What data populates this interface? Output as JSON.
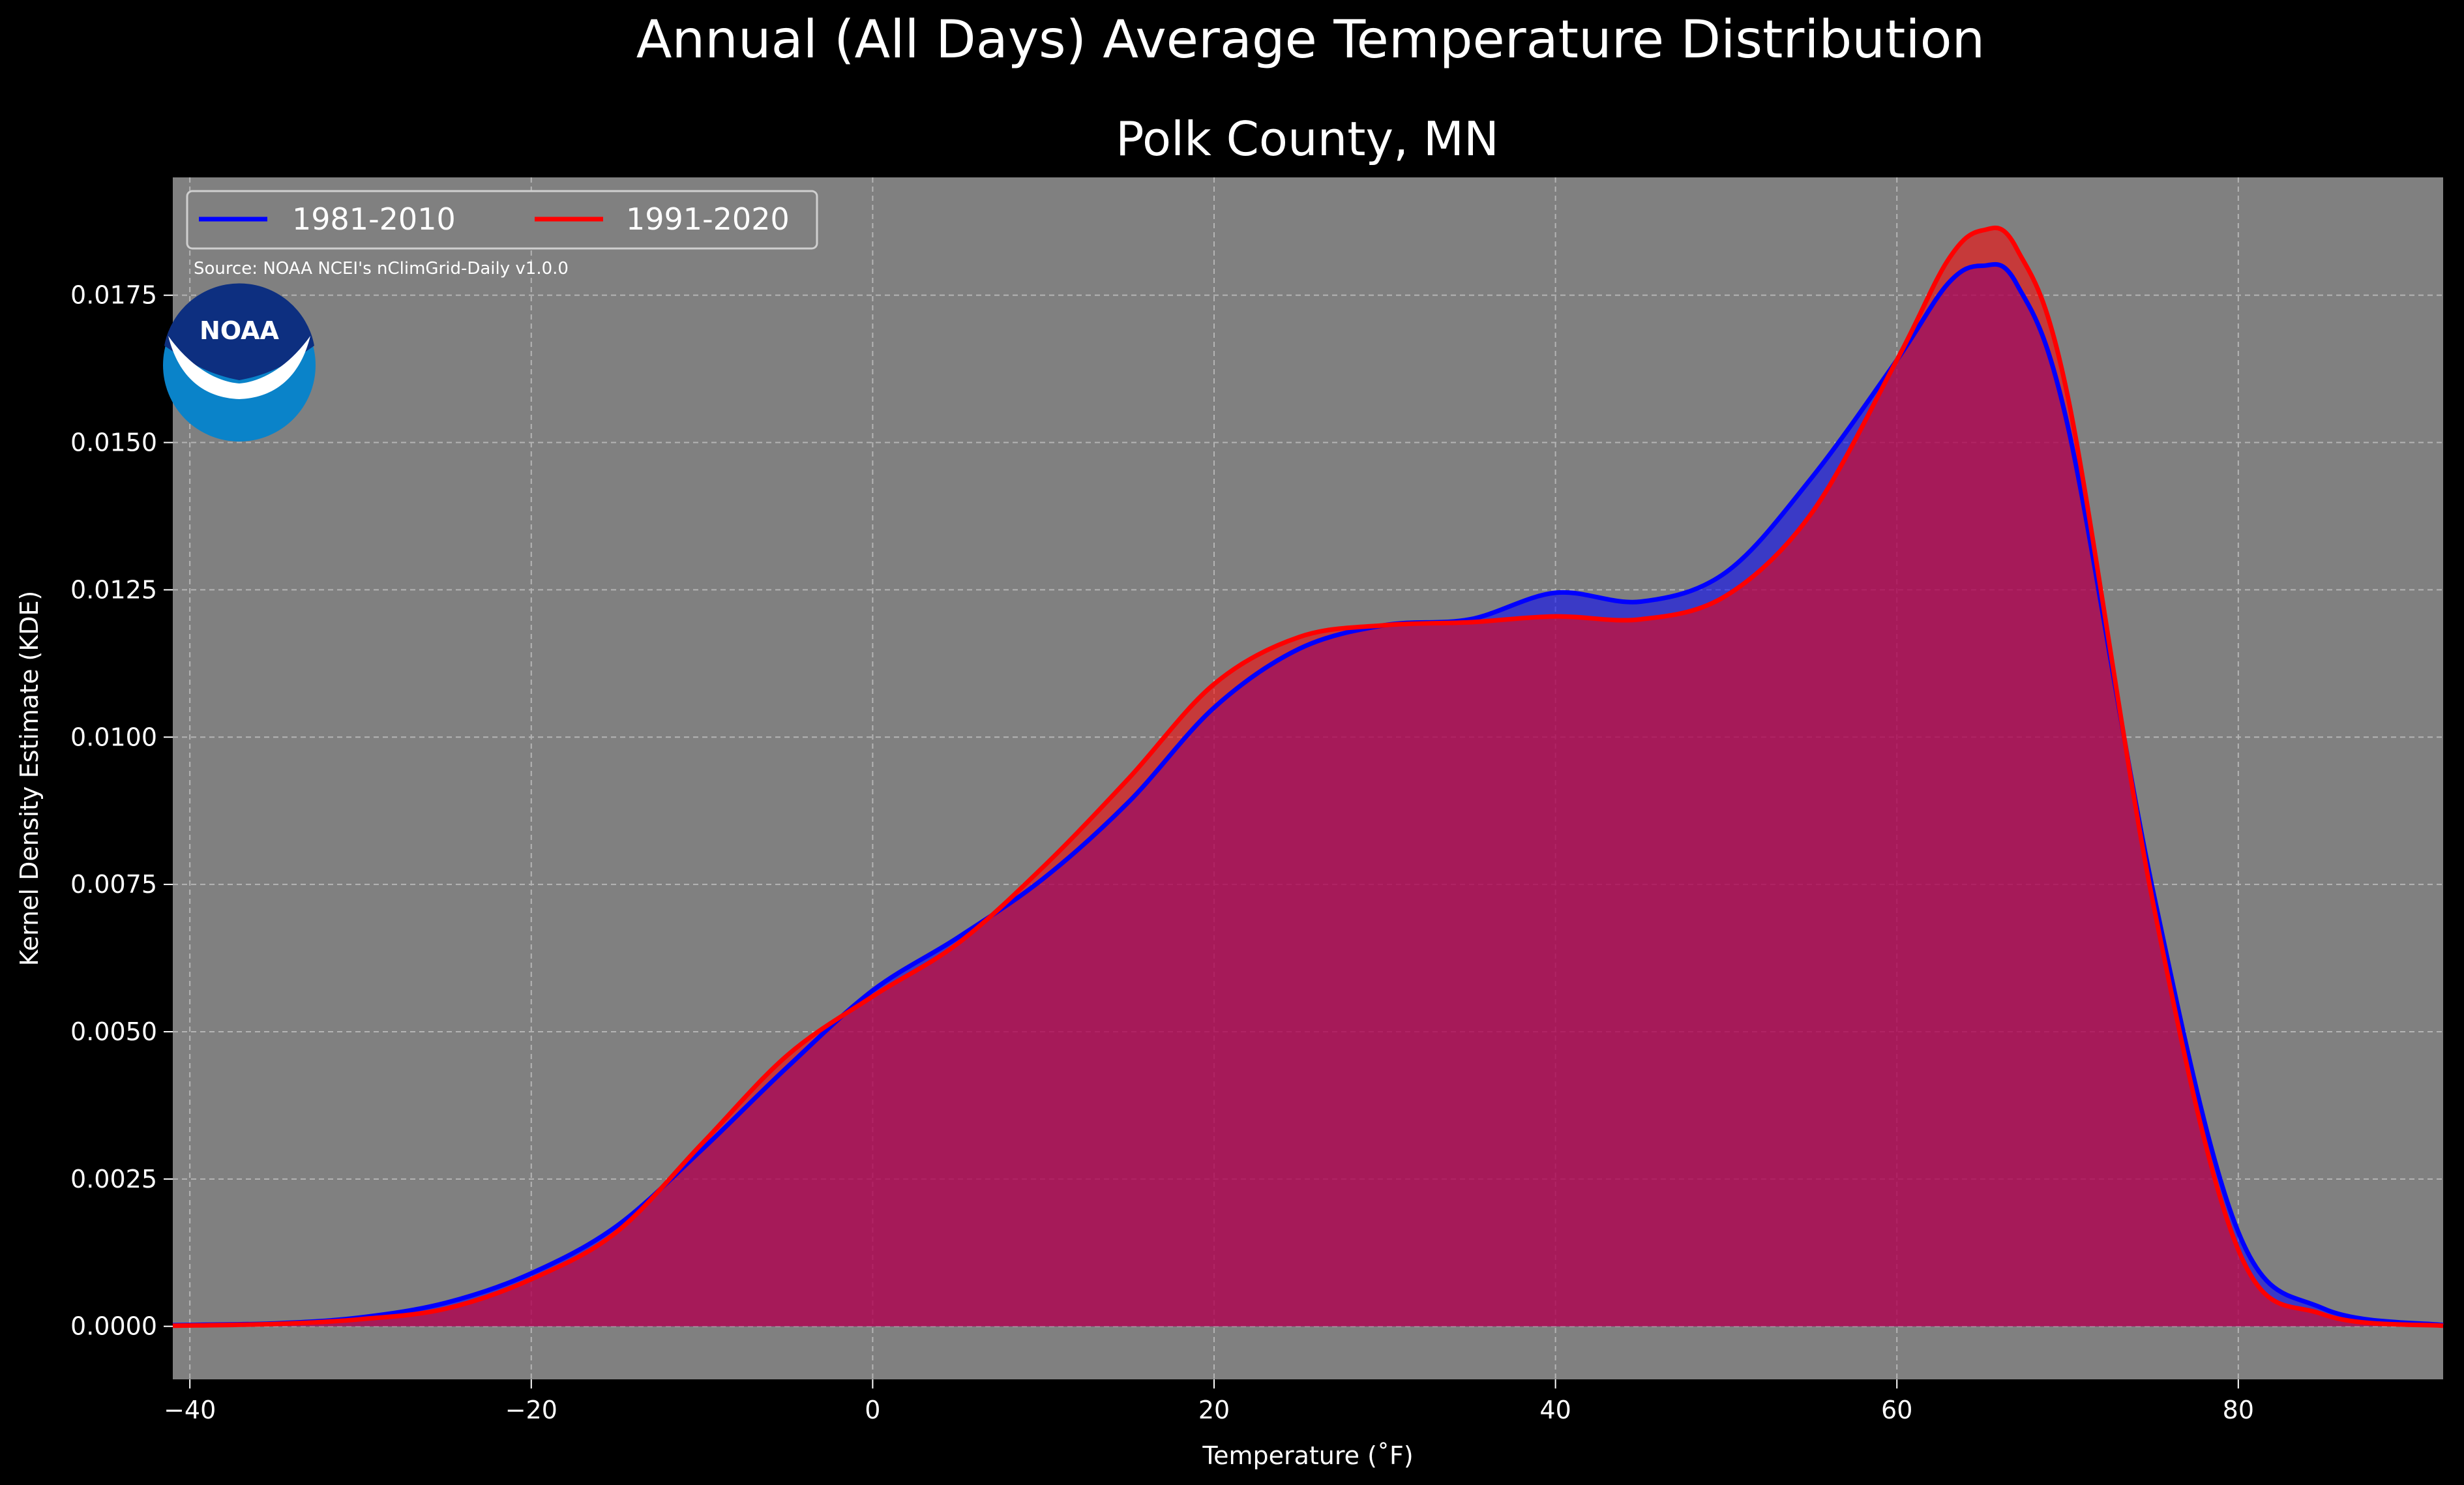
{
  "chart_data": {
    "type": "area",
    "title": "Annual (All Days) Average Temperature Distribution",
    "subtitle": "Polk County, MN",
    "xlabel": "Temperature (˚F)",
    "ylabel": "Kernel Density Estimate (KDE)",
    "xlim": [
      -41,
      92
    ],
    "ylim": [
      -0.0009,
      0.0195
    ],
    "xticks": [
      -40,
      -20,
      0,
      20,
      40,
      60,
      80
    ],
    "xtick_labels": [
      "−40",
      "−20",
      "0",
      "20",
      "40",
      "60",
      "80"
    ],
    "yticks": [
      0,
      0.0025,
      0.005,
      0.0075,
      0.01,
      0.0125,
      0.015,
      0.0175
    ],
    "ytick_labels": [
      "0.0000",
      "0.0025",
      "0.0050",
      "0.0075",
      "0.0100",
      "0.0125",
      "0.0150",
      "0.0175"
    ],
    "grid": true,
    "legend_position": "top-left",
    "source_note": "Source: NOAA NCEI's nClimGrid-Daily v1.0.0",
    "logo_text": "NOAA",
    "colors": {
      "background": "#000000",
      "plot_background": "#808080",
      "series_1981": "#0000ff",
      "series_1991": "#ff0000"
    },
    "series": [
      {
        "name": "1981-2010",
        "color": "#0000ff",
        "x": [
          -41,
          -35,
          -30,
          -25,
          -20,
          -15,
          -10,
          -5,
          0,
          5,
          10,
          15,
          20,
          25,
          30,
          35,
          40,
          45,
          50,
          55,
          60,
          63,
          65,
          67,
          70,
          75,
          80,
          85,
          92
        ],
        "y": [
          2e-05,
          5e-05,
          0.00015,
          0.0004,
          0.0009,
          0.0017,
          0.003,
          0.0044,
          0.0057,
          0.0066,
          0.0076,
          0.0089,
          0.0105,
          0.0115,
          0.0119,
          0.012,
          0.01245,
          0.0123,
          0.0128,
          0.0144,
          0.0164,
          0.0177,
          0.018,
          0.0177,
          0.0153,
          0.0074,
          0.0016,
          0.0003,
          2e-05
        ]
      },
      {
        "name": "1991-2020",
        "color": "#ff0000",
        "x": [
          -41,
          -35,
          -30,
          -25,
          -20,
          -15,
          -10,
          -5,
          0,
          5,
          10,
          15,
          20,
          25,
          30,
          35,
          40,
          45,
          50,
          55,
          60,
          63,
          65,
          67,
          70,
          75,
          80,
          85,
          92
        ],
        "y": [
          1e-05,
          4e-05,
          0.00012,
          0.0003,
          0.0008,
          0.0016,
          0.0031,
          0.0046,
          0.0056,
          0.0065,
          0.0078,
          0.0093,
          0.0109,
          0.0117,
          0.0119,
          0.01195,
          0.01205,
          0.012,
          0.0124,
          0.0138,
          0.0164,
          0.0181,
          0.0186,
          0.0183,
          0.0158,
          0.0072,
          0.0013,
          0.0002,
          1e-05
        ]
      }
    ]
  }
}
